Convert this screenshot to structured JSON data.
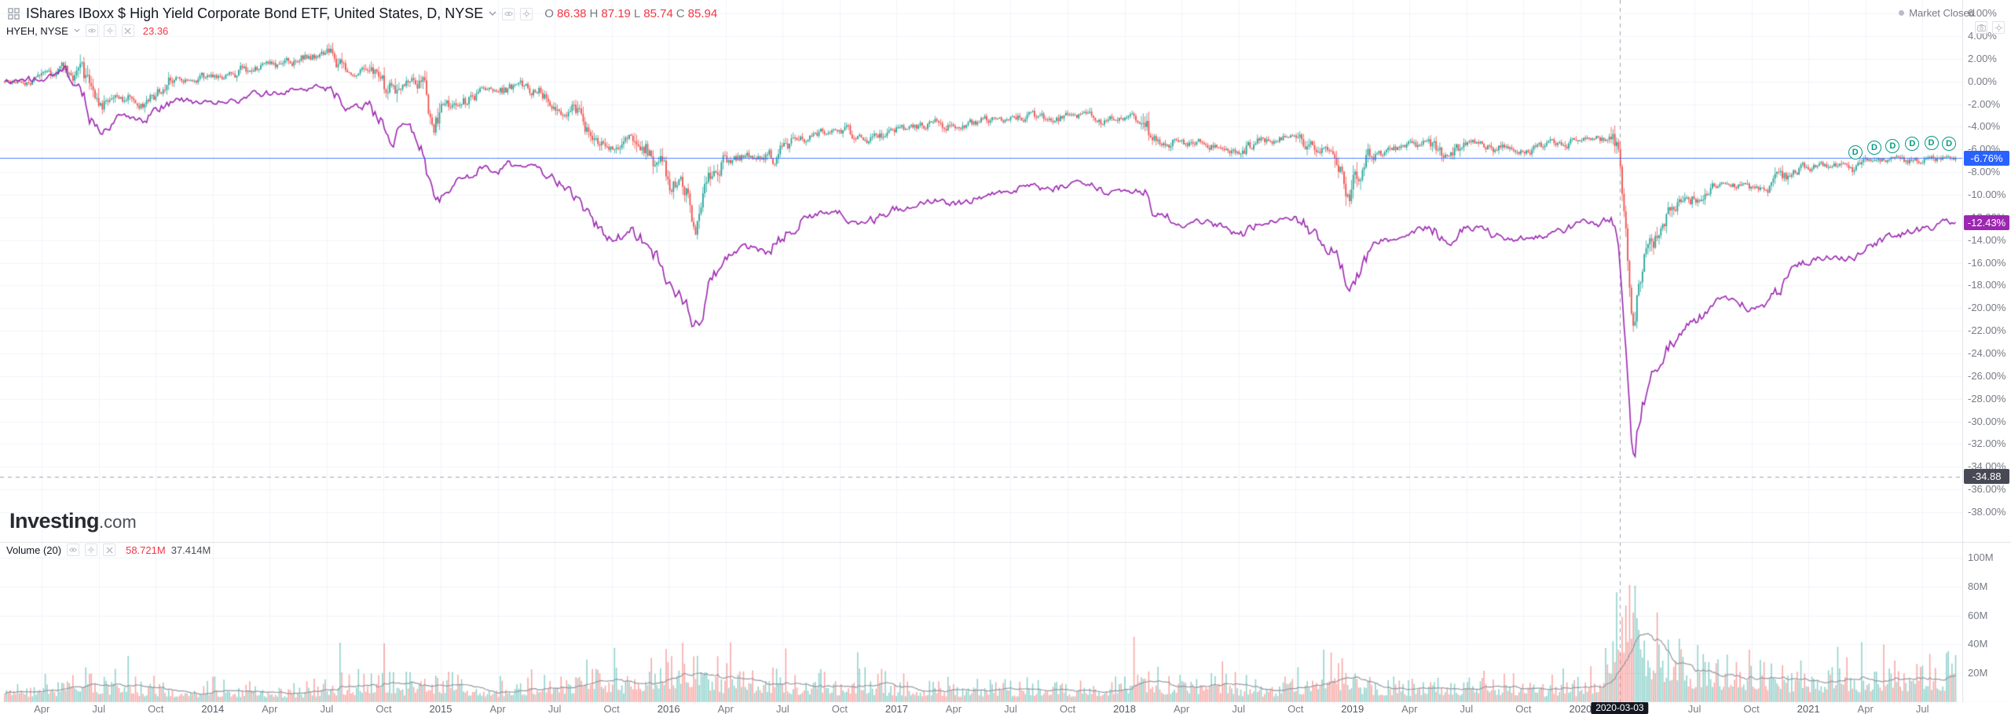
{
  "header": {
    "symbol_title": "IShares IBoxx $ High Yield Corporate Bond ETF, United States, D, NYSE",
    "ohlc": {
      "o_label": "O",
      "o": "86.38",
      "h_label": "H",
      "h": "87.19",
      "l_label": "L",
      "l": "85.74",
      "c_label": "C",
      "c": "85.94"
    },
    "market_status": "Market Closed",
    "compare_symbol": "HYEH, NYSE",
    "compare_value": "23.36"
  },
  "volume_legend": {
    "label": "Volume (20)",
    "value1": "58.721M",
    "value2": "37.414M"
  },
  "watermark": {
    "brand": "Investing",
    "tld": ".com"
  },
  "price_labels": {
    "main": "-6.76%",
    "compare": "-12.43%",
    "hline": "-34.88"
  },
  "vline_date": "2020-03-03",
  "colors": {
    "up": "#26a69a",
    "down": "#ef5350",
    "up_vol": "rgba(38,166,154,0.5)",
    "down_vol": "rgba(239,83,80,0.5)",
    "compare_line": "#9c27b0",
    "current_price_line": "#2962ff",
    "dashed_line": "#a0a3ab",
    "grid": "#f0f3fa",
    "border": "#dde1e7",
    "axis_text": "#787b86",
    "volume_ma": "#9598a1",
    "dividend": "#089981"
  },
  "chart_data": {
    "type": "candlestick+line+volume",
    "title": "IShares IBoxx $ High Yield Corporate Bond ETF vs comparison, % change, daily",
    "x_unit": "month",
    "months": [
      "2013-03",
      "2013-04",
      "2013-05",
      "2013-06",
      "2013-07",
      "2013-08",
      "2013-09",
      "2013-10",
      "2013-11",
      "2013-12",
      "2014-01",
      "2014-02",
      "2014-03",
      "2014-04",
      "2014-05",
      "2014-06",
      "2014-07",
      "2014-08",
      "2014-09",
      "2014-10",
      "2014-11",
      "2014-12",
      "2015-01",
      "2015-02",
      "2015-03",
      "2015-04",
      "2015-05",
      "2015-06",
      "2015-07",
      "2015-08",
      "2015-09",
      "2015-10",
      "2015-11",
      "2015-12",
      "2016-01",
      "2016-02",
      "2016-03",
      "2016-04",
      "2016-05",
      "2016-06",
      "2016-07",
      "2016-08",
      "2016-09",
      "2016-10",
      "2016-11",
      "2016-12",
      "2017-01",
      "2017-02",
      "2017-03",
      "2017-04",
      "2017-05",
      "2017-06",
      "2017-07",
      "2017-08",
      "2017-09",
      "2017-10",
      "2017-11",
      "2017-12",
      "2018-01",
      "2018-02",
      "2018-03",
      "2018-04",
      "2018-05",
      "2018-06",
      "2018-07",
      "2018-08",
      "2018-09",
      "2018-10",
      "2018-11",
      "2018-12",
      "2019-01",
      "2019-02",
      "2019-03",
      "2019-04",
      "2019-05",
      "2019-06",
      "2019-07",
      "2019-08",
      "2019-09",
      "2019-10",
      "2019-11",
      "2019-12",
      "2020-01",
      "2020-02",
      "2020-03",
      "2020-04",
      "2020-05",
      "2020-06",
      "2020-07",
      "2020-08",
      "2020-09",
      "2020-10",
      "2020-11",
      "2020-12",
      "2021-01",
      "2021-02",
      "2021-03",
      "2021-04",
      "2021-05",
      "2021-06",
      "2021-07",
      "2021-08"
    ],
    "series": [
      {
        "name": "IShares IBoxx $ High Yield Corporate Bond ETF",
        "type": "candlestick",
        "unit": "%",
        "values": [
          0.0,
          0.5,
          1.2,
          0.0,
          -2.5,
          -1.2,
          -1.8,
          -0.8,
          0.3,
          0.3,
          0.5,
          0.6,
          1.2,
          1.4,
          1.7,
          2.2,
          2.4,
          1.0,
          1.2,
          -0.2,
          0.0,
          -1.0,
          -2.6,
          -1.8,
          -0.9,
          -1.0,
          -0.4,
          -0.9,
          -1.8,
          -2.8,
          -4.6,
          -5.8,
          -4.6,
          -6.6,
          -8.8,
          -10.8,
          -9.0,
          -7.0,
          -6.6,
          -7.0,
          -5.8,
          -4.8,
          -4.4,
          -4.4,
          -5.2,
          -4.8,
          -4.2,
          -4.0,
          -3.6,
          -4.2,
          -3.8,
          -3.4,
          -3.4,
          -3.0,
          -3.3,
          -2.9,
          -3.0,
          -3.5,
          -3.2,
          -3.4,
          -5.0,
          -5.6,
          -5.3,
          -5.6,
          -6.0,
          -5.2,
          -4.9,
          -4.8,
          -6.2,
          -7.2,
          -8.8,
          -6.4,
          -6.0,
          -5.8,
          -5.3,
          -6.6,
          -5.4,
          -5.6,
          -6.1,
          -6.0,
          -5.7,
          -5.5,
          -4.9,
          -5.0,
          -8.5,
          -16.0,
          -12.6,
          -11.0,
          -10.0,
          -9.0,
          -9.0,
          -9.5,
          -9.3,
          -7.8,
          -7.5,
          -7.4,
          -7.8,
          -7.2,
          -7.0,
          -6.9,
          -6.6,
          -6.76
        ]
      },
      {
        "name": "HYEH, NYSE (comparison)",
        "type": "line",
        "unit": "%",
        "values": [
          0.0,
          0.4,
          1.0,
          -0.5,
          -4.2,
          -3.0,
          -3.8,
          -2.6,
          -1.6,
          -1.8,
          -1.8,
          -1.8,
          -1.2,
          -1.0,
          -0.8,
          -0.5,
          -0.6,
          -2.4,
          -2.2,
          -4.4,
          -4.0,
          -5.6,
          -9.6,
          -8.8,
          -7.6,
          -7.8,
          -7.0,
          -7.8,
          -9.0,
          -10.4,
          -12.6,
          -14.2,
          -12.8,
          -15.0,
          -17.6,
          -19.8,
          -17.8,
          -15.2,
          -14.6,
          -15.2,
          -13.4,
          -12.0,
          -11.6,
          -11.6,
          -12.6,
          -12.0,
          -11.2,
          -10.8,
          -10.2,
          -10.8,
          -10.2,
          -9.8,
          -9.8,
          -9.2,
          -9.6,
          -9.0,
          -9.2,
          -9.8,
          -9.4,
          -9.8,
          -11.8,
          -12.6,
          -12.4,
          -12.8,
          -13.6,
          -12.6,
          -12.2,
          -12.0,
          -13.8,
          -15.2,
          -17.0,
          -14.4,
          -13.8,
          -13.4,
          -12.8,
          -14.4,
          -12.8,
          -13.2,
          -14.0,
          -13.8,
          -13.6,
          -13.2,
          -12.4,
          -12.6,
          -17.0,
          -28.5,
          -24.6,
          -22.5,
          -21.0,
          -19.2,
          -19.2,
          -20.0,
          -19.4,
          -16.4,
          -15.8,
          -15.4,
          -15.6,
          -14.6,
          -13.8,
          -13.4,
          -13.0,
          -12.43
        ]
      },
      {
        "name": "Volume (20) moving average",
        "type": "bar",
        "unit": "M shares",
        "values": [
          8,
          8,
          9,
          14,
          12,
          10,
          9,
          8,
          7,
          7,
          8,
          8,
          7,
          7,
          6,
          7,
          10,
          9,
          11,
          13,
          9,
          13,
          12,
          9,
          9,
          8,
          8,
          10,
          11,
          13,
          14,
          12,
          13,
          16,
          19,
          23,
          17,
          13,
          12,
          14,
          11,
          10,
          11,
          10,
          13,
          10,
          9,
          8,
          10,
          8,
          8,
          9,
          7,
          9,
          8,
          7,
          9,
          8,
          9,
          15,
          12,
          10,
          10,
          11,
          9,
          8,
          8,
          11,
          13,
          17,
          13,
          10,
          10,
          9,
          12,
          10,
          9,
          12,
          10,
          9,
          8,
          8,
          9,
          13,
          62,
          42,
          28,
          26,
          20,
          17,
          19,
          18,
          16,
          13,
          13,
          14,
          17,
          13,
          18,
          15,
          20,
          17
        ]
      }
    ],
    "extremes": [
      {
        "date": "2013-06-25",
        "etf": -3.3,
        "cmp": -5.2
      },
      {
        "date": "2014-10-15",
        "etf": -1.6,
        "cmp": -5.6
      },
      {
        "date": "2014-12-16",
        "etf": -4.3,
        "cmp": -11.3
      },
      {
        "date": "2016-02-11",
        "etf": -13.0,
        "cmp": -22.5
      },
      {
        "date": "2018-02-09",
        "etf": -5.6,
        "cmp": -12.4
      },
      {
        "date": "2018-12-26",
        "etf": -10.5,
        "cmp": -19.0
      },
      {
        "date": "2020-02-21",
        "etf": -4.6,
        "cmp": -12.0
      },
      {
        "date": "2020-03-23",
        "etf": -25.0,
        "cmp": -37.6,
        "vol": 95
      }
    ],
    "y_axis": {
      "min": -38,
      "max": 6,
      "step": 2,
      "format": "percent"
    },
    "volume_axis": {
      "min": 0,
      "max": 100,
      "step": 20,
      "ticks": [
        100,
        80,
        60,
        40,
        20
      ],
      "tick_labels": [
        "100M",
        "80M",
        "60M",
        "40M",
        "20M"
      ]
    },
    "current_values": {
      "main_pct": -6.76,
      "compare_pct": -12.43
    },
    "hline_pct": -34.88,
    "vline_date": "2020-03-03",
    "dividends": {
      "label": "D",
      "dates": [
        "2021-03-15",
        "2021-04-15",
        "2021-05-14",
        "2021-06-15",
        "2021-07-15",
        "2021-08-13"
      ]
    },
    "time_axis_labels": [
      {
        "d": "2013-04",
        "t": "Apr"
      },
      {
        "d": "2013-07",
        "t": "Jul"
      },
      {
        "d": "2013-10",
        "t": "Oct"
      },
      {
        "d": "2014-01",
        "t": "2014",
        "y": 1
      },
      {
        "d": "2014-04",
        "t": "Apr"
      },
      {
        "d": "2014-07",
        "t": "Jul"
      },
      {
        "d": "2014-10",
        "t": "Oct"
      },
      {
        "d": "2015-01",
        "t": "2015",
        "y": 1
      },
      {
        "d": "2015-04",
        "t": "Apr"
      },
      {
        "d": "2015-07",
        "t": "Jul"
      },
      {
        "d": "2015-10",
        "t": "Oct"
      },
      {
        "d": "2016-01",
        "t": "2016",
        "y": 1
      },
      {
        "d": "2016-04",
        "t": "Apr"
      },
      {
        "d": "2016-07",
        "t": "Jul"
      },
      {
        "d": "2016-10",
        "t": "Oct"
      },
      {
        "d": "2017-01",
        "t": "2017",
        "y": 1
      },
      {
        "d": "2017-04",
        "t": "Apr"
      },
      {
        "d": "2017-07",
        "t": "Jul"
      },
      {
        "d": "2017-10",
        "t": "Oct"
      },
      {
        "d": "2018-01",
        "t": "2018",
        "y": 1
      },
      {
        "d": "2018-04",
        "t": "Apr"
      },
      {
        "d": "2018-07",
        "t": "Jul"
      },
      {
        "d": "2018-10",
        "t": "Oct"
      },
      {
        "d": "2019-01",
        "t": "2019",
        "y": 1
      },
      {
        "d": "2019-04",
        "t": "Apr"
      },
      {
        "d": "2019-07",
        "t": "Jul"
      },
      {
        "d": "2019-10",
        "t": "Oct"
      },
      {
        "d": "2020-01",
        "t": "2020",
        "y": 1
      },
      {
        "d": "2020-07",
        "t": "Jul"
      },
      {
        "d": "2020-10",
        "t": "Oct"
      },
      {
        "d": "2021-01",
        "t": "2021",
        "y": 1
      },
      {
        "d": "2021-04",
        "t": "Apr"
      },
      {
        "d": "2021-07",
        "t": "Jul"
      }
    ]
  }
}
